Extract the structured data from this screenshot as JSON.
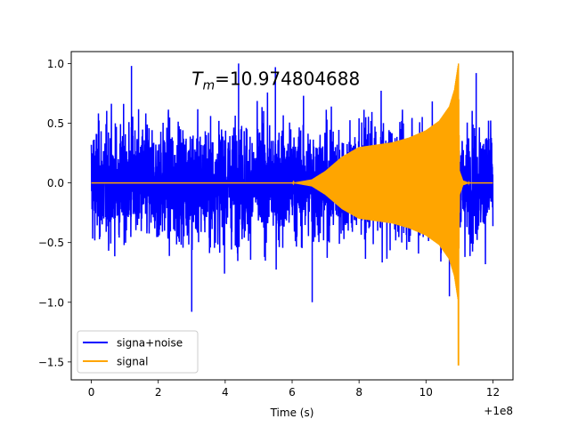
{
  "chart_data": {
    "type": "line",
    "title": "",
    "xlabel": "Time (s)",
    "ylabel": "",
    "x_offset_label": "+1e8",
    "xlim": [
      -0.6,
      12.6
    ],
    "ylim": [
      -1.65,
      1.1
    ],
    "xticks": [
      0,
      2,
      4,
      6,
      8,
      10,
      12
    ],
    "xtick_labels": [
      "0",
      "2",
      "4",
      "6",
      "8",
      "10",
      "12"
    ],
    "yticks": [
      -1.5,
      -1.0,
      -0.5,
      0.0,
      0.5,
      1.0
    ],
    "ytick_labels": [
      "−1.5",
      "−1.0",
      "−0.5",
      "0.0",
      "0.5",
      "1.0"
    ],
    "grid": false,
    "legend_position": "lower-left",
    "annotation": {
      "symbol": "T",
      "subscript": "m",
      "value_text": "=10.974804688",
      "x": 3.0,
      "y": 0.82
    },
    "series": [
      {
        "name": "signa+noise",
        "color": "#0000ff",
        "description": "noisy strain: signal plus random noise",
        "x_range": [
          0,
          12
        ],
        "typical_amplitude": [
          -0.6,
          0.65
        ],
        "peak_positive": 1.0,
        "peak_negative": -1.08
      },
      {
        "name": "signal",
        "color": "#ffa500",
        "description": "chirp signal envelope",
        "envelope_points": [
          [
            0,
            0.0
          ],
          [
            6.0,
            0.0
          ],
          [
            6.6,
            0.03
          ],
          [
            7.0,
            0.1
          ],
          [
            7.5,
            0.22
          ],
          [
            8.0,
            0.3
          ],
          [
            8.5,
            0.32
          ],
          [
            9.0,
            0.34
          ],
          [
            9.5,
            0.38
          ],
          [
            10.0,
            0.44
          ],
          [
            10.4,
            0.52
          ],
          [
            10.7,
            0.64
          ],
          [
            10.85,
            0.78
          ],
          [
            10.97,
            1.0
          ],
          [
            11.0,
            0.1
          ],
          [
            11.1,
            0.02
          ],
          [
            11.3,
            0.0
          ],
          [
            12.0,
            0.0
          ]
        ],
        "min_value": -1.53,
        "min_at": 10.97
      }
    ]
  },
  "colors": {
    "noise": "#0000ff",
    "signal": "#ffa500",
    "axes": "#000000",
    "background": "#ffffff"
  }
}
